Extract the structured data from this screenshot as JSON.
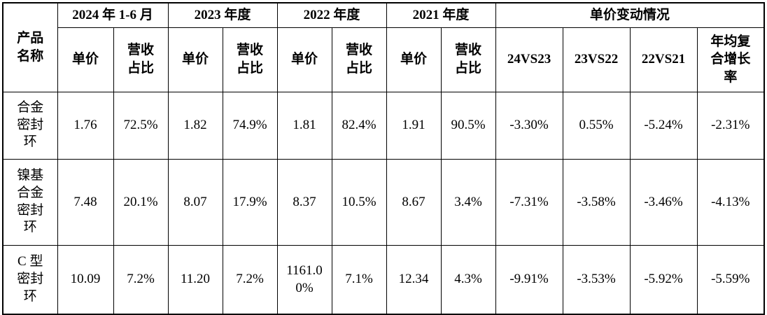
{
  "header": {
    "product_name": "产品名称",
    "periods": [
      "2024 年 1-6 月",
      "2023 年度",
      "2022 年度",
      "2021 年度"
    ],
    "change_group": "单价变动情况",
    "unit_price": "单价",
    "revenue_share": "营收占比",
    "change_cols": [
      "24VS23",
      "23VS22",
      "22VS21",
      "年均复合增长率"
    ]
  },
  "rows": [
    {
      "product": "合金密封环",
      "values": [
        "1.76",
        "72.5%",
        "1.82",
        "74.9%",
        "1.81",
        "82.4%",
        "1.91",
        "90.5%"
      ],
      "changes": [
        "-3.30%",
        "0.55%",
        "-5.24%",
        "-2.31%"
      ]
    },
    {
      "product": "镍基合金密封环",
      "values": [
        "7.48",
        "20.1%",
        "8.07",
        "17.9%",
        "8.37",
        "10.5%",
        "8.67",
        "3.4%"
      ],
      "changes": [
        "-7.31%",
        "-3.58%",
        "-3.46%",
        "-4.13%"
      ]
    },
    {
      "product": "C 型密封环",
      "values": [
        "10.09",
        "7.2%",
        "11.20",
        "7.2%",
        "1161.00%",
        "7.1%",
        "12.34",
        "4.3%"
      ],
      "changes": [
        "-9.91%",
        "-3.53%",
        "-5.92%",
        "-5.59%"
      ]
    }
  ]
}
